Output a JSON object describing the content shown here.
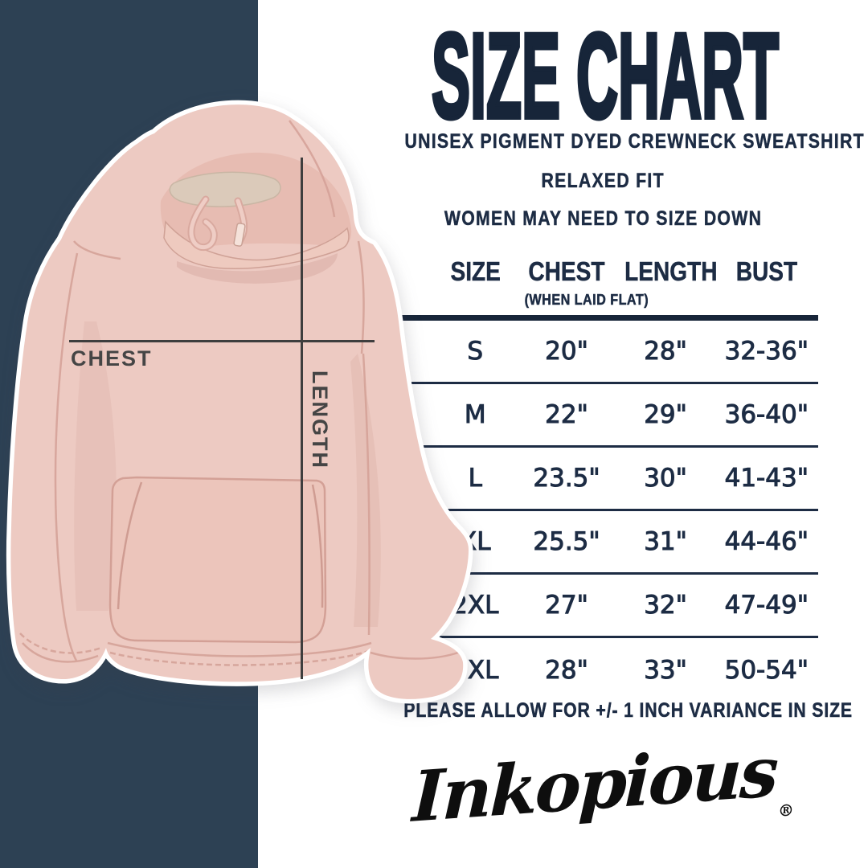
{
  "colors": {
    "navy_band": "#2d4154",
    "navy_text": "#1d2c44",
    "title_navy": "#172539",
    "measure_line": "#3e3e3e",
    "measure_label": "#454545",
    "hoodie_pink": "#edcac2",
    "hoodie_shade": "#d3a096",
    "fleece": "#dbcaba",
    "logo_black": "#0e0e0e",
    "table_line": "#1d2c44"
  },
  "header": {
    "title": "SIZE CHART",
    "subtitle1": "UNISEX PIGMENT DYED CREWNECK SWEATSHIRT",
    "subtitle2": "RELAXED FIT",
    "subtitle3": "WOMEN MAY NEED TO SIZE DOWN"
  },
  "measurements": {
    "chest_label": "CHEST",
    "length_label": "LENGTH"
  },
  "size_table": {
    "columns": [
      "SIZE",
      "CHEST",
      "LENGTH",
      "BUST"
    ],
    "chest_note": "(WHEN LAID FLAT)",
    "rows": [
      {
        "size": "S",
        "chest": "20\"",
        "length": "28\"",
        "bust": "32-36\""
      },
      {
        "size": "M",
        "chest": "22\"",
        "length": "29\"",
        "bust": "36-40\""
      },
      {
        "size": "L",
        "chest": "23.5\"",
        "length": "30\"",
        "bust": "41-43\""
      },
      {
        "size": "XL",
        "chest": "25.5\"",
        "length": "31\"",
        "bust": "44-46\""
      },
      {
        "size": "2XL",
        "chest": "27\"",
        "length": "32\"",
        "bust": "47-49\""
      },
      {
        "size": "3XL",
        "chest": "28\"",
        "length": "33\"",
        "bust": "50-54\""
      }
    ]
  },
  "footnote": "PLEASE ALLOW FOR +/- 1 INCH VARIANCE IN SIZE",
  "brand": {
    "logo_text": "Inkopious",
    "registered": "®"
  },
  "chart_data": {
    "type": "table",
    "title": "SIZE CHART",
    "columns": [
      "SIZE",
      "CHEST (WHEN LAID FLAT)",
      "LENGTH",
      "BUST"
    ],
    "rows": [
      [
        "S",
        "20\"",
        "28\"",
        "32-36\""
      ],
      [
        "M",
        "22\"",
        "29\"",
        "36-40\""
      ],
      [
        "L",
        "23.5\"",
        "30\"",
        "41-43\""
      ],
      [
        "XL",
        "25.5\"",
        "31\"",
        "44-46\""
      ],
      [
        "2XL",
        "27\"",
        "32\"",
        "47-49\""
      ],
      [
        "3XL",
        "28\"",
        "33\"",
        "50-54\""
      ]
    ]
  }
}
